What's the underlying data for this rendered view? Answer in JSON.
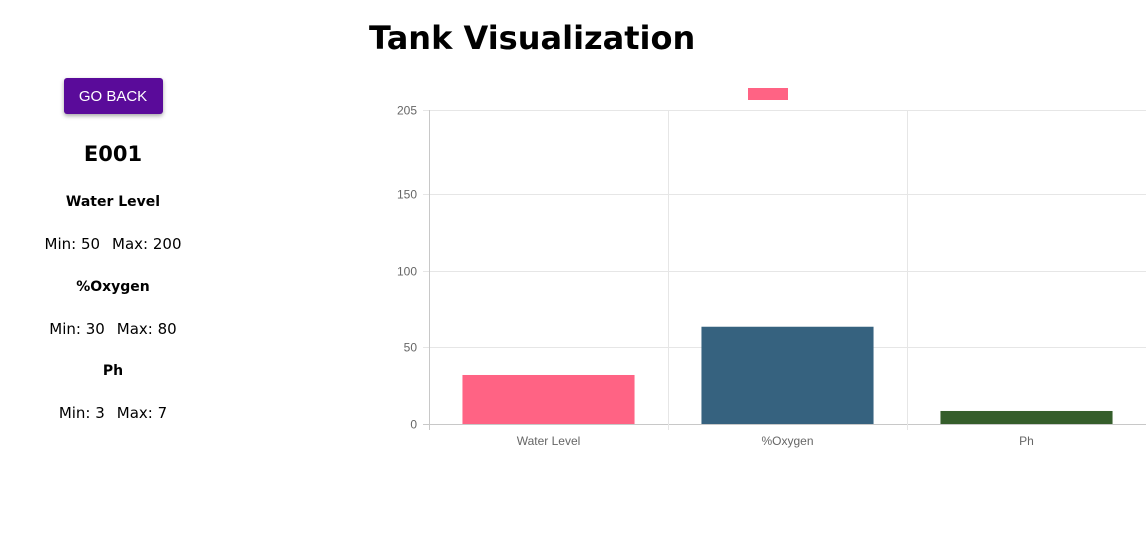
{
  "page": {
    "title": "Tank Visualization"
  },
  "sidebar": {
    "back_label": "GO BACK",
    "tank_id": "E001",
    "metrics": [
      {
        "name": "Water Level",
        "min_label": "Min: 50",
        "max_label": "Max: 200"
      },
      {
        "name": "%Oxygen",
        "min_label": "Min: 30",
        "max_label": "Max: 80"
      },
      {
        "name": "Ph",
        "min_label": "Min: 3",
        "max_label": "Max: 7"
      }
    ]
  },
  "chart_data": {
    "type": "bar",
    "categories": [
      "Water Level",
      "%Oxygen",
      "Ph"
    ],
    "values": [
      32,
      63.5,
      8.5
    ],
    "colors": [
      "#ff6384",
      "#36627f",
      "#355e2b"
    ],
    "yticks": [
      0,
      50,
      100,
      150,
      205
    ],
    "ylim": [
      0,
      205
    ],
    "grid": true,
    "legend": {
      "label": "",
      "color": "#ff6384",
      "placement": "top"
    }
  }
}
